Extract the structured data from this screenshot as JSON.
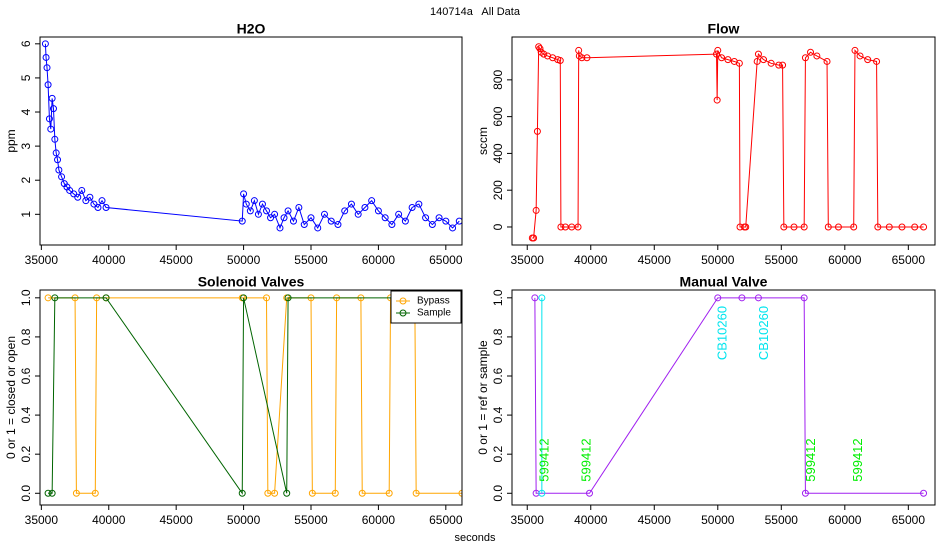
{
  "title": "140714a   All Data",
  "xlabel": "seconds",
  "chart_data": [
    {
      "type": "line",
      "title": "H2O",
      "ylabel": "ppm",
      "xlim": [
        34900,
        66200
      ],
      "ylim": [
        0.1,
        6.2
      ],
      "xticks": [
        35000,
        40000,
        45000,
        50000,
        55000,
        60000,
        65000
      ],
      "yticks": [
        1,
        2,
        3,
        4,
        5,
        6
      ],
      "series": [
        {
          "color": "#0000ff",
          "x": [
            35300,
            35350,
            35420,
            35500,
            35600,
            35700,
            35800,
            35900,
            36000,
            36100,
            36200,
            36300,
            36500,
            36700,
            36900,
            37100,
            37400,
            37700,
            38000,
            38300,
            38600,
            38900,
            39200,
            39500,
            39800,
            49900,
            50000,
            50200,
            50500,
            50800,
            51100,
            51400,
            51700,
            52000,
            52300,
            52700,
            53000,
            53300,
            53700,
            54100,
            54500,
            55000,
            55500,
            56000,
            56500,
            57000,
            57500,
            58000,
            58500,
            59000,
            59500,
            60000,
            60500,
            61000,
            61500,
            62000,
            62500,
            63000,
            63500,
            64000,
            64500,
            65000,
            65500,
            66000
          ],
          "values": [
            6.0,
            5.6,
            5.3,
            4.8,
            3.8,
            3.5,
            4.4,
            4.1,
            3.2,
            2.8,
            2.6,
            2.3,
            2.1,
            1.9,
            1.8,
            1.7,
            1.6,
            1.5,
            1.7,
            1.4,
            1.5,
            1.3,
            1.2,
            1.4,
            1.2,
            0.8,
            1.6,
            1.3,
            1.1,
            1.4,
            1.0,
            1.3,
            1.1,
            0.9,
            1.0,
            0.6,
            0.9,
            1.1,
            0.8,
            1.2,
            0.7,
            0.9,
            0.6,
            1.0,
            0.8,
            0.7,
            1.1,
            1.3,
            1.0,
            1.2,
            1.4,
            1.1,
            0.9,
            0.7,
            1.0,
            0.8,
            1.2,
            1.3,
            0.9,
            0.7,
            0.9,
            0.8,
            0.6,
            0.8
          ]
        }
      ]
    },
    {
      "type": "line",
      "title": "Flow",
      "ylabel": "sccm",
      "xlim": [
        33800,
        67100
      ],
      "ylim": [
        -98,
        1033
      ],
      "xticks": [
        35000,
        40000,
        45000,
        50000,
        55000,
        60000,
        65000
      ],
      "yticks": [
        0,
        200,
        400,
        600,
        800
      ],
      "series": [
        {
          "color": "#ff0000",
          "x": [
            35400,
            35500,
            35700,
            35800,
            35900,
            36000,
            36100,
            36300,
            36600,
            37000,
            37400,
            37600,
            37650,
            38000,
            38500,
            39000,
            39050,
            39100,
            39300,
            39700,
            49900,
            49950,
            50000,
            50300,
            50800,
            51300,
            51700,
            51750,
            52100,
            52200,
            53100,
            53200,
            53600,
            54200,
            54800,
            55100,
            55200,
            56000,
            56800,
            56900,
            57300,
            57800,
            58600,
            58700,
            59500,
            60700,
            60800,
            61200,
            61800,
            62500,
            62600,
            63500,
            64500,
            65500,
            66200
          ],
          "values": [
            -60,
            -60,
            90,
            520,
            980,
            970,
            950,
            940,
            930,
            920,
            910,
            905,
            0,
            0,
            0,
            0,
            960,
            930,
            920,
            920,
            940,
            690,
            960,
            920,
            910,
            900,
            890,
            0,
            0,
            0,
            900,
            940,
            910,
            890,
            880,
            880,
            0,
            0,
            0,
            920,
            950,
            930,
            900,
            0,
            0,
            0,
            960,
            930,
            910,
            900,
            0,
            0,
            0,
            0,
            0
          ]
        }
      ]
    },
    {
      "type": "line",
      "title": "Solenoid Valves",
      "ylabel": "0 or 1 = closed or open",
      "xlim": [
        34900,
        66200
      ],
      "ylim": [
        -0.06,
        1.04
      ],
      "xticks": [
        35000,
        40000,
        45000,
        50000,
        55000,
        60000,
        65000
      ],
      "yticks": [
        {
          "value": 0,
          "label": "0.0"
        },
        0.2,
        0.4,
        0.6,
        0.8,
        {
          "value": 1,
          "label": "1.0"
        }
      ],
      "legend": "topright",
      "series": [
        {
          "name": "Bypass",
          "color": "#ffa500",
          "x": [
            35500,
            37500,
            37600,
            39000,
            39100,
            39800,
            49900,
            51700,
            51800,
            52300,
            53200,
            55000,
            55100,
            56800,
            56900,
            58700,
            58800,
            60800,
            60900,
            62700,
            62800,
            66200
          ],
          "values": [
            1,
            1,
            0,
            0,
            1,
            1,
            1,
            1,
            0,
            0,
            1,
            1,
            0,
            0,
            1,
            1,
            0,
            0,
            1,
            1,
            0,
            0
          ]
        },
        {
          "name": "Sample",
          "color": "#006400",
          "x": [
            35500,
            35800,
            36000,
            39800,
            49900,
            50000,
            53200,
            53300,
            66200
          ],
          "values": [
            0,
            0,
            1,
            1,
            0,
            1,
            0,
            1,
            1
          ]
        }
      ]
    },
    {
      "type": "line",
      "title": "Manual Valve",
      "ylabel": "0 or 1 = ref or sample",
      "xlim": [
        33800,
        67100
      ],
      "ylim": [
        -0.06,
        1.04
      ],
      "xticks": [
        35000,
        40000,
        45000,
        50000,
        55000,
        60000,
        65000
      ],
      "yticks": [
        {
          "value": 0,
          "label": "0.0"
        },
        0.2,
        0.4,
        0.6,
        0.8,
        {
          "value": 1,
          "label": "1.0"
        }
      ],
      "series": [
        {
          "color": "#a020f0",
          "x": [
            35600,
            35700,
            39900,
            50000,
            51900,
            53200,
            56800,
            56900,
            66200
          ],
          "values": [
            1,
            0,
            0,
            1,
            1,
            1,
            1,
            0,
            0
          ]
        },
        {
          "color": "#00e5ee",
          "x": [
            36150,
            36150
          ],
          "values": [
            0,
            1
          ]
        }
      ],
      "annotations": [
        {
          "text": "599412",
          "x": 36400,
          "y": 0.17,
          "color": "#00ee00"
        },
        {
          "text": "599412",
          "x": 39700,
          "y": 0.17,
          "color": "#00ee00"
        },
        {
          "text": "CB10260",
          "x": 50400,
          "y": 0.82,
          "color": "#00e5ee"
        },
        {
          "text": "CB10260",
          "x": 53700,
          "y": 0.82,
          "color": "#00e5ee"
        },
        {
          "text": "599412",
          "x": 57400,
          "y": 0.17,
          "color": "#00ee00"
        },
        {
          "text": "599412",
          "x": 61100,
          "y": 0.17,
          "color": "#00ee00"
        }
      ]
    }
  ]
}
